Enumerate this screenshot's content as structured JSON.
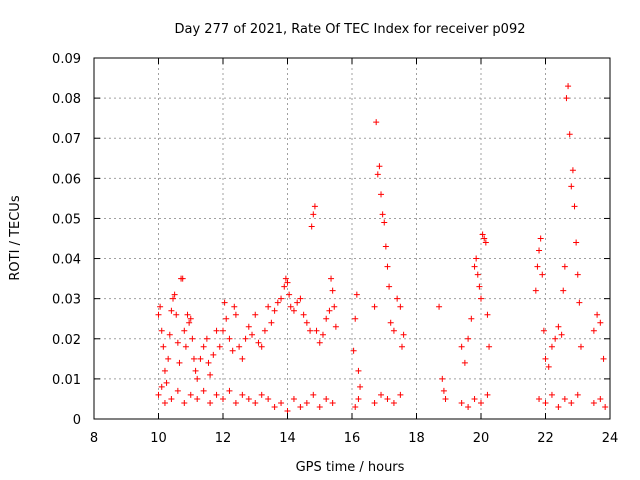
{
  "chart_data": {
    "type": "scatter",
    "title": "Day 277 of 2021, Rate Of TEC Index for receiver p092",
    "xlabel": "GPS time / hours",
    "ylabel": "ROTI / TECUs",
    "xlim": [
      8,
      24
    ],
    "ylim": [
      0,
      0.09
    ],
    "xticks": [
      "8",
      "10",
      "12",
      "14",
      "16",
      "18",
      "20",
      "22",
      "24"
    ],
    "yticks": [
      "0",
      "0.01",
      "0.02",
      "0.03",
      "0.04",
      "0.05",
      "0.06",
      "0.07",
      "0.08",
      "0.09"
    ],
    "grid": true,
    "marker": "+",
    "color": "#ff0000",
    "series": [
      {
        "name": "p092",
        "points": [
          [
            10.0,
            0.026
          ],
          [
            10.05,
            0.028
          ],
          [
            10.1,
            0.022
          ],
          [
            10.15,
            0.018
          ],
          [
            10.2,
            0.012
          ],
          [
            10.25,
            0.009
          ],
          [
            10.3,
            0.015
          ],
          [
            10.35,
            0.021
          ],
          [
            10.4,
            0.027
          ],
          [
            10.45,
            0.03
          ],
          [
            10.5,
            0.031
          ],
          [
            10.55,
            0.026
          ],
          [
            10.6,
            0.019
          ],
          [
            10.65,
            0.014
          ],
          [
            10.7,
            0.035
          ],
          [
            10.75,
            0.035
          ],
          [
            10.8,
            0.022
          ],
          [
            10.85,
            0.018
          ],
          [
            10.9,
            0.026
          ],
          [
            10.95,
            0.024
          ],
          [
            11.0,
            0.025
          ],
          [
            11.05,
            0.02
          ],
          [
            11.1,
            0.015
          ],
          [
            11.15,
            0.012
          ],
          [
            11.2,
            0.01
          ],
          [
            11.3,
            0.015
          ],
          [
            11.4,
            0.018
          ],
          [
            11.5,
            0.02
          ],
          [
            11.55,
            0.014
          ],
          [
            11.6,
            0.011
          ],
          [
            11.7,
            0.016
          ],
          [
            11.8,
            0.022
          ],
          [
            11.9,
            0.018
          ],
          [
            12.0,
            0.022
          ],
          [
            12.05,
            0.029
          ],
          [
            12.1,
            0.025
          ],
          [
            12.2,
            0.02
          ],
          [
            12.3,
            0.017
          ],
          [
            12.35,
            0.028
          ],
          [
            12.4,
            0.026
          ],
          [
            12.5,
            0.018
          ],
          [
            12.6,
            0.015
          ],
          [
            12.7,
            0.02
          ],
          [
            12.8,
            0.023
          ],
          [
            12.9,
            0.021
          ],
          [
            13.0,
            0.026
          ],
          [
            13.1,
            0.019
          ],
          [
            13.2,
            0.018
          ],
          [
            13.3,
            0.022
          ],
          [
            13.4,
            0.028
          ],
          [
            13.5,
            0.024
          ],
          [
            13.6,
            0.027
          ],
          [
            13.7,
            0.029
          ],
          [
            13.8,
            0.03
          ],
          [
            13.9,
            0.033
          ],
          [
            13.95,
            0.035
          ],
          [
            14.0,
            0.034
          ],
          [
            14.05,
            0.031
          ],
          [
            14.1,
            0.028
          ],
          [
            14.2,
            0.027
          ],
          [
            14.3,
            0.029
          ],
          [
            14.4,
            0.03
          ],
          [
            14.5,
            0.026
          ],
          [
            14.6,
            0.024
          ],
          [
            14.7,
            0.022
          ],
          [
            14.75,
            0.048
          ],
          [
            14.8,
            0.051
          ],
          [
            14.85,
            0.053
          ],
          [
            14.9,
            0.022
          ],
          [
            15.0,
            0.019
          ],
          [
            15.1,
            0.021
          ],
          [
            15.2,
            0.025
          ],
          [
            15.3,
            0.027
          ],
          [
            15.35,
            0.035
          ],
          [
            15.4,
            0.032
          ],
          [
            15.45,
            0.028
          ],
          [
            15.5,
            0.023
          ],
          [
            16.05,
            0.017
          ],
          [
            16.1,
            0.025
          ],
          [
            16.15,
            0.031
          ],
          [
            16.2,
            0.012
          ],
          [
            16.25,
            0.008
          ],
          [
            16.7,
            0.028
          ],
          [
            16.75,
            0.074
          ],
          [
            16.8,
            0.061
          ],
          [
            16.85,
            0.063
          ],
          [
            16.9,
            0.056
          ],
          [
            16.95,
            0.051
          ],
          [
            17.0,
            0.049
          ],
          [
            17.05,
            0.043
          ],
          [
            17.1,
            0.038
          ],
          [
            17.15,
            0.033
          ],
          [
            17.2,
            0.024
          ],
          [
            17.3,
            0.022
          ],
          [
            17.4,
            0.03
          ],
          [
            17.5,
            0.028
          ],
          [
            17.55,
            0.018
          ],
          [
            17.6,
            0.021
          ],
          [
            18.7,
            0.028
          ],
          [
            18.8,
            0.01
          ],
          [
            18.85,
            0.007
          ],
          [
            18.9,
            0.005
          ],
          [
            19.4,
            0.018
          ],
          [
            19.5,
            0.014
          ],
          [
            19.6,
            0.02
          ],
          [
            19.7,
            0.025
          ],
          [
            19.8,
            0.038
          ],
          [
            19.85,
            0.04
          ],
          [
            19.9,
            0.036
          ],
          [
            19.95,
            0.033
          ],
          [
            20.0,
            0.03
          ],
          [
            20.05,
            0.046
          ],
          [
            20.1,
            0.045
          ],
          [
            20.15,
            0.044
          ],
          [
            20.2,
            0.026
          ],
          [
            20.25,
            0.018
          ],
          [
            21.7,
            0.032
          ],
          [
            21.75,
            0.038
          ],
          [
            21.8,
            0.042
          ],
          [
            21.85,
            0.045
          ],
          [
            21.9,
            0.036
          ],
          [
            21.95,
            0.022
          ],
          [
            22.0,
            0.015
          ],
          [
            22.1,
            0.013
          ],
          [
            22.2,
            0.018
          ],
          [
            22.3,
            0.02
          ],
          [
            22.4,
            0.023
          ],
          [
            22.5,
            0.021
          ],
          [
            22.55,
            0.032
          ],
          [
            22.6,
            0.038
          ],
          [
            22.65,
            0.08
          ],
          [
            22.7,
            0.083
          ],
          [
            22.75,
            0.071
          ],
          [
            22.8,
            0.058
          ],
          [
            22.85,
            0.062
          ],
          [
            22.9,
            0.053
          ],
          [
            22.95,
            0.044
          ],
          [
            23.0,
            0.036
          ],
          [
            23.05,
            0.029
          ],
          [
            23.1,
            0.018
          ],
          [
            23.5,
            0.022
          ],
          [
            23.6,
            0.026
          ],
          [
            23.7,
            0.024
          ],
          [
            23.8,
            0.015
          ],
          [
            10.0,
            0.006
          ],
          [
            10.1,
            0.008
          ],
          [
            10.2,
            0.004
          ],
          [
            10.4,
            0.005
          ],
          [
            10.6,
            0.007
          ],
          [
            10.8,
            0.004
          ],
          [
            11.0,
            0.006
          ],
          [
            11.2,
            0.005
          ],
          [
            11.4,
            0.007
          ],
          [
            11.6,
            0.004
          ],
          [
            11.8,
            0.006
          ],
          [
            12.0,
            0.005
          ],
          [
            12.2,
            0.007
          ],
          [
            12.4,
            0.004
          ],
          [
            12.6,
            0.006
          ],
          [
            12.8,
            0.005
          ],
          [
            13.0,
            0.004
          ],
          [
            13.2,
            0.006
          ],
          [
            13.4,
            0.005
          ],
          [
            13.6,
            0.003
          ],
          [
            13.8,
            0.004
          ],
          [
            14.0,
            0.002
          ],
          [
            14.2,
            0.005
          ],
          [
            14.4,
            0.003
          ],
          [
            14.6,
            0.004
          ],
          [
            14.8,
            0.006
          ],
          [
            15.0,
            0.003
          ],
          [
            15.2,
            0.005
          ],
          [
            15.4,
            0.004
          ],
          [
            16.1,
            0.003
          ],
          [
            16.2,
            0.005
          ],
          [
            16.7,
            0.004
          ],
          [
            16.9,
            0.006
          ],
          [
            17.1,
            0.005
          ],
          [
            17.3,
            0.004
          ],
          [
            17.5,
            0.006
          ],
          [
            19.4,
            0.004
          ],
          [
            19.6,
            0.003
          ],
          [
            19.8,
            0.005
          ],
          [
            20.0,
            0.004
          ],
          [
            20.2,
            0.006
          ],
          [
            21.8,
            0.005
          ],
          [
            22.0,
            0.004
          ],
          [
            22.2,
            0.006
          ],
          [
            22.4,
            0.003
          ],
          [
            22.6,
            0.005
          ],
          [
            22.8,
            0.004
          ],
          [
            23.0,
            0.006
          ],
          [
            23.5,
            0.004
          ],
          [
            23.7,
            0.005
          ],
          [
            23.85,
            0.003
          ]
        ]
      }
    ]
  }
}
